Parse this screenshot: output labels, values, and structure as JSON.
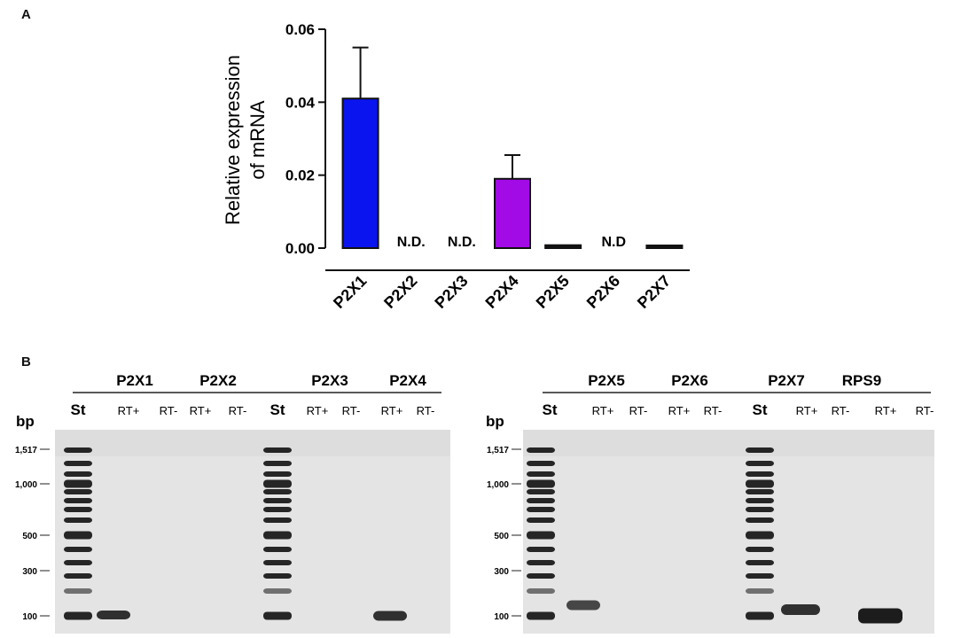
{
  "panel_a": {
    "letter": "A"
  },
  "panel_b": {
    "letter": "B"
  },
  "chart_data": {
    "type": "bar",
    "title": "",
    "ylabel_line1": "Relative expression",
    "ylabel_line2": "of mRNA",
    "xlabel": "",
    "ylim": [
      0,
      0.06
    ],
    "yticks": [
      "0.00",
      "0.02",
      "0.04",
      "0.06"
    ],
    "categories": [
      "P2X1",
      "P2X2",
      "P2X3",
      "P2X4",
      "P2X5",
      "P2X6",
      "P2X7"
    ],
    "values": [
      0.041,
      null,
      null,
      0.019,
      0.0008,
      null,
      0.0006
    ],
    "errors": [
      0.014,
      null,
      null,
      0.0065,
      0,
      null,
      0
    ],
    "nd_labels": [
      "",
      "N.D.",
      "N.D.",
      "",
      "",
      "N.D",
      ""
    ],
    "colors": [
      "#0a14ee",
      "#ffffff",
      "#ffffff",
      "#a20ae6",
      "#111111",
      "#ffffff",
      "#111111"
    ]
  },
  "gel_left": {
    "unit": "bp",
    "group_labels": [
      "P2X1",
      "P2X2",
      "P2X3",
      "P2X4"
    ],
    "lane_labels": [
      "St",
      "RT+",
      "RT-",
      "RT+",
      "RT-",
      "St",
      "RT+",
      "RT-",
      "RT+",
      "RT-"
    ],
    "markers": [
      "1,517",
      "1,000",
      "500",
      "300",
      "100"
    ]
  },
  "gel_right": {
    "unit": "bp",
    "group_labels": [
      "P2X5",
      "P2X6",
      "P2X7",
      "RPS9"
    ],
    "lane_labels": [
      "St",
      "RT+",
      "RT-",
      "RT+",
      "RT-",
      "St",
      "RT+",
      "RT-",
      "RT+",
      "RT-"
    ],
    "markers": [
      "1,517",
      "1,000",
      "500",
      "300",
      "100"
    ]
  }
}
